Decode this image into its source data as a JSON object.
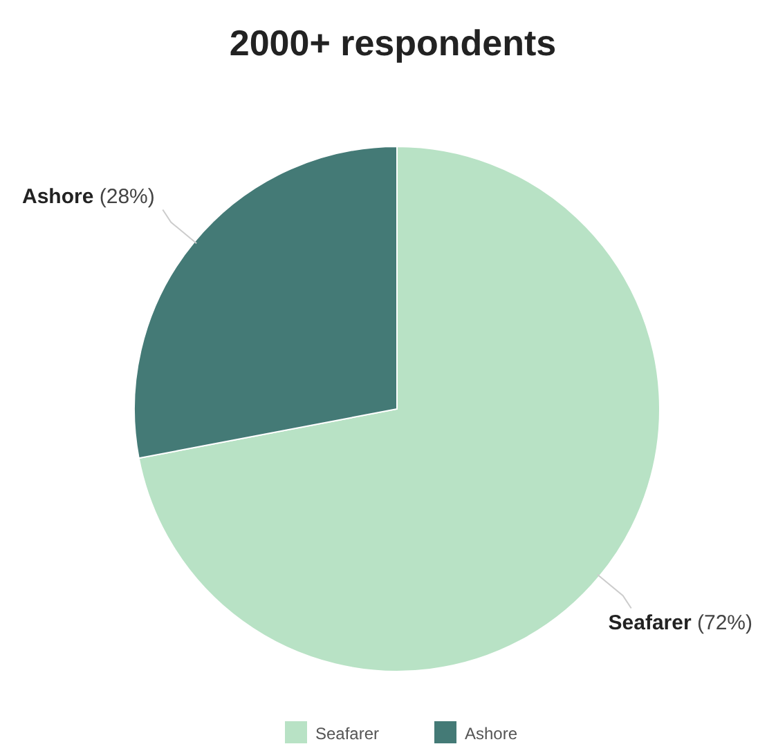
{
  "chart_data": {
    "type": "pie",
    "title": "2000+ respondents",
    "categories": [
      "Seafarer",
      "Ashore"
    ],
    "values": [
      72,
      28
    ],
    "colors": [
      "#b8e2c5",
      "#447a76"
    ],
    "value_labels": [
      "(72%)",
      "(28%)"
    ],
    "legend": "bottom"
  }
}
